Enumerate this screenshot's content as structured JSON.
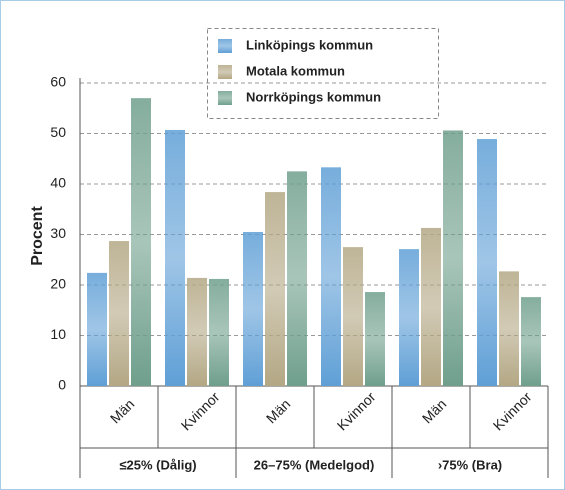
{
  "chart_data": {
    "type": "bar",
    "y_label": "Procent",
    "categories": [
      "Män",
      "Kvinnor",
      "Män",
      "Kvinnor",
      "Män",
      "Kvinnor"
    ],
    "groups": [
      "≤25% (Dålig)",
      "26–75% (Medelgod)",
      "›75% (Bra)"
    ],
    "series": [
      {
        "name": "Linköpings kommun",
        "color": "#5f9fd6",
        "values": [
          22.4,
          50.7,
          30.5,
          43.3,
          27.1,
          48.9
        ]
      },
      {
        "name": "Motala kommun",
        "color": "#b3a784",
        "values": [
          28.7,
          21.4,
          38.4,
          27.5,
          31.3,
          22.7
        ]
      },
      {
        "name": "Norrköpings kommun",
        "color": "#6f9f8c",
        "values": [
          57.0,
          21.2,
          42.5,
          18.6,
          50.6,
          17.6
        ]
      }
    ],
    "ylim": [
      0,
      60
    ],
    "yticks": [
      0,
      10,
      20,
      30,
      40,
      50,
      60
    ],
    "grid": true,
    "legend": "top"
  }
}
